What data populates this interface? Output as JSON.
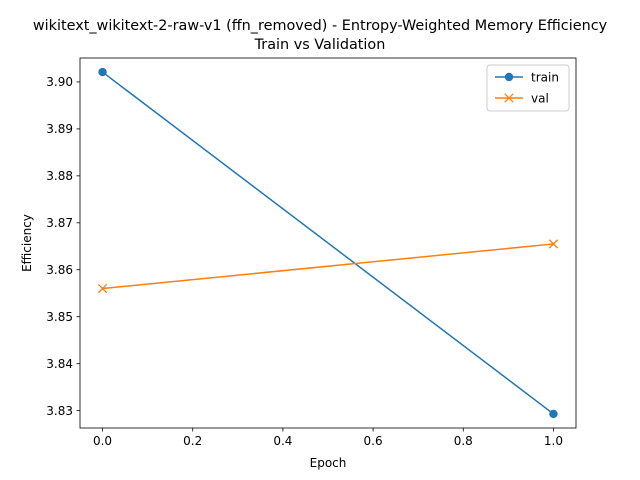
{
  "chart_data": {
    "type": "line",
    "title_line1": "wikitext_wikitext-2-raw-v1 (ffn_removed) - Entropy-Weighted Memory Efficiency",
    "title_line2": "Train vs Validation",
    "xlabel": "Epoch",
    "ylabel": "Efficiency",
    "xlim": [
      -0.05,
      1.05
    ],
    "ylim": [
      3.8263,
      3.9051
    ],
    "xticks": [
      0.0,
      0.2,
      0.4,
      0.6,
      0.8,
      1.0
    ],
    "xtick_labels": [
      "0.0",
      "0.2",
      "0.4",
      "0.6",
      "0.8",
      "1.0"
    ],
    "yticks": [
      3.83,
      3.84,
      3.85,
      3.86,
      3.87,
      3.88,
      3.89,
      3.9
    ],
    "ytick_labels": [
      "3.83",
      "3.84",
      "3.85",
      "3.86",
      "3.87",
      "3.88",
      "3.89",
      "3.90"
    ],
    "grid": false,
    "legend_position": "top-right",
    "series": [
      {
        "name": "train",
        "marker": "circle",
        "color": "#1f77b4",
        "x": [
          0,
          1
        ],
        "y": [
          3.9021,
          3.8293
        ]
      },
      {
        "name": "val",
        "marker": "x",
        "color": "#ff7f0e",
        "x": [
          0,
          1
        ],
        "y": [
          3.856,
          3.8655
        ]
      }
    ]
  }
}
